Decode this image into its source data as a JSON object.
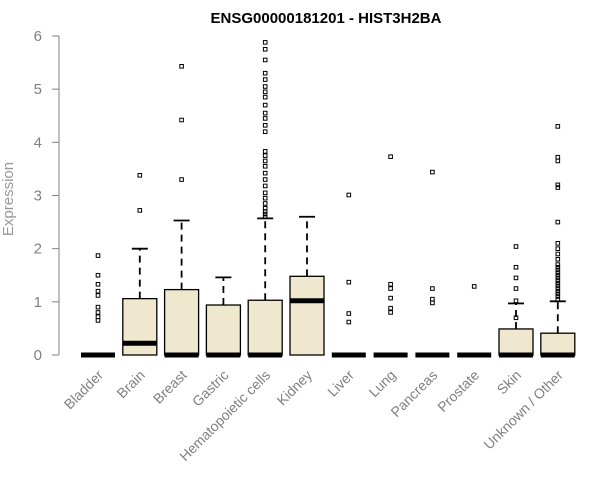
{
  "chart_data": {
    "type": "boxplot",
    "title": "ENSG00000181201 - HIST3H2BA",
    "xlabel": "",
    "ylabel": "Expression",
    "ylim": [
      0,
      6
    ],
    "yticks": [
      "0",
      "1",
      "2",
      "3",
      "4",
      "5",
      "6"
    ],
    "grid": false,
    "legend": "none",
    "colors": {
      "box_fill": "#efe8cf",
      "box_stroke": "#000000",
      "axis": "#808080",
      "label": "#808080"
    },
    "categories": [
      "Bladder",
      "Brain",
      "Breast",
      "Gastric",
      "Hematopoietic cells",
      "Kidney",
      "Liver",
      "Lung",
      "Pancreas",
      "Prostate",
      "Skin",
      "Unknown / Other"
    ],
    "boxes": [
      {
        "name": "Bladder",
        "q1": 0,
        "median": 0,
        "q3": 0,
        "whisker_low": 0,
        "whisker_high": 0,
        "outliers": [
          1.87,
          1.5,
          1.33,
          1.2,
          1.12,
          0.9,
          0.8,
          0.72,
          0.65
        ]
      },
      {
        "name": "Brain",
        "q1": 0,
        "median": 0.22,
        "q3": 1.06,
        "whisker_low": 0,
        "whisker_high": 2.0,
        "outliers": [
          2.72,
          3.38
        ]
      },
      {
        "name": "Breast",
        "q1": 0,
        "median": 0,
        "q3": 1.23,
        "whisker_low": 0,
        "whisker_high": 2.53,
        "outliers": [
          3.3,
          4.42,
          5.43
        ]
      },
      {
        "name": "Gastric",
        "q1": 0,
        "median": 0,
        "q3": 0.94,
        "whisker_low": 0,
        "whisker_high": 1.46,
        "outliers": []
      },
      {
        "name": "Hematopoietic cells",
        "q1": 0,
        "median": 0,
        "q3": 1.03,
        "whisker_low": 0,
        "whisker_high": 2.57,
        "outliers": [
          2.6,
          2.65,
          2.7,
          2.76,
          2.85,
          2.95,
          3.05,
          3.18,
          3.3,
          3.42,
          3.55,
          3.65,
          3.75,
          3.83,
          4.2,
          4.32,
          4.45,
          4.55,
          4.7,
          4.85,
          4.95,
          5.05,
          5.18,
          5.3,
          5.55,
          5.75,
          5.88
        ]
      },
      {
        "name": "Kidney",
        "q1": 0,
        "median": 1.02,
        "q3": 1.48,
        "whisker_low": 0,
        "whisker_high": 2.6,
        "outliers": []
      },
      {
        "name": "Liver",
        "q1": 0,
        "median": 0,
        "q3": 0,
        "whisker_low": 0,
        "whisker_high": 0,
        "outliers": [
          3.01,
          1.37,
          0.78,
          0.62
        ]
      },
      {
        "name": "Lung",
        "q1": 0,
        "median": 0,
        "q3": 0,
        "whisker_low": 0,
        "whisker_high": 0,
        "outliers": [
          3.73,
          1.33,
          1.25,
          1.07,
          0.88,
          0.8
        ]
      },
      {
        "name": "Pancreas",
        "q1": 0,
        "median": 0,
        "q3": 0,
        "whisker_low": 0,
        "whisker_high": 0,
        "outliers": [
          3.44,
          1.25,
          1.05,
          0.98
        ]
      },
      {
        "name": "Prostate",
        "q1": 0,
        "median": 0,
        "q3": 0,
        "whisker_low": 0,
        "whisker_high": 0,
        "outliers": [
          1.29
        ]
      },
      {
        "name": "Skin",
        "q1": 0,
        "median": 0,
        "q3": 0.49,
        "whisker_low": 0,
        "whisker_high": 0.97,
        "outliers": [
          2.04,
          1.65,
          1.45,
          1.25,
          1.02,
          0.7
        ]
      },
      {
        "name": "Unknown / Other",
        "q1": 0,
        "median": 0,
        "q3": 0.41,
        "whisker_low": 0,
        "whisker_high": 1.01,
        "outliers": [
          1.05,
          1.1,
          1.15,
          1.2,
          1.25,
          1.3,
          1.35,
          1.4,
          1.45,
          1.5,
          1.55,
          1.6,
          1.65,
          1.7,
          1.8,
          1.9,
          2.0,
          2.1,
          2.5,
          3.15,
          3.2,
          3.65,
          3.72,
          4.3
        ]
      }
    ]
  }
}
